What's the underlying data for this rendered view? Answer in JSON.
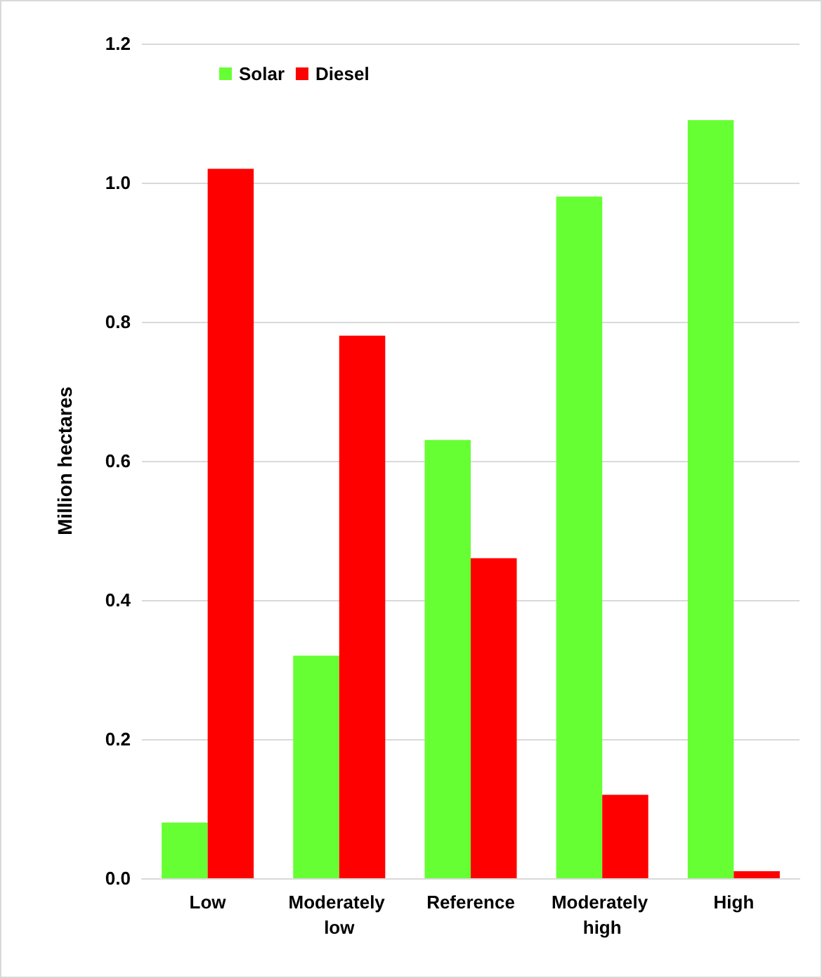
{
  "chart_data": {
    "type": "bar",
    "ylabel": "Million hectares",
    "categories": [
      "Low",
      "Moderately low",
      "Reference",
      "Moderately high",
      "High"
    ],
    "series": [
      {
        "name": "Solar",
        "color": "#66ff33",
        "values": [
          0.08,
          0.32,
          0.63,
          0.98,
          1.09
        ]
      },
      {
        "name": "Diesel",
        "color": "#ff0000",
        "values": [
          1.02,
          0.78,
          0.46,
          0.12,
          0.01
        ]
      }
    ],
    "ylim": [
      0,
      1.2
    ],
    "yticks": [
      {
        "value": 0,
        "label": "0.0"
      },
      0.2,
      0.4,
      0.6,
      0.8,
      {
        "value": 1,
        "label": "1.0"
      },
      1.2
    ],
    "grid": "y",
    "legend": "top left"
  }
}
